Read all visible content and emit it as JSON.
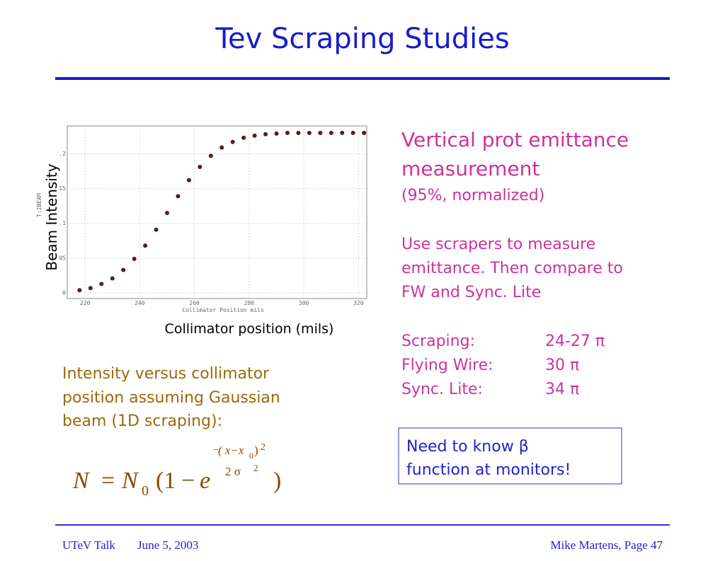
{
  "title": "Tev Scraping Studies",
  "chart_data": {
    "type": "scatter",
    "x": [
      218,
      222,
      226,
      230,
      234,
      238,
      242,
      246,
      250,
      254,
      258,
      262,
      266,
      270,
      274,
      278,
      282,
      286,
      290,
      294,
      298,
      302,
      306,
      310,
      314,
      318,
      322
    ],
    "values": [
      0.004,
      0.007,
      0.013,
      0.021,
      0.033,
      0.049,
      0.068,
      0.091,
      0.115,
      0.139,
      0.162,
      0.181,
      0.197,
      0.209,
      0.217,
      0.223,
      0.226,
      0.228,
      0.229,
      0.23,
      0.23,
      0.23,
      0.23,
      0.23,
      0.23,
      0.23,
      0.23
    ],
    "color": "#5a1a1a",
    "xlim": [
      213.5,
      323
    ],
    "xticks": [
      220,
      240,
      260,
      280,
      300,
      320
    ],
    "ylim": [
      -0.008,
      0.24
    ],
    "yticks": [
      0,
      {
        "value": 0.05,
        "label": "05"
      },
      {
        "value": 0.1,
        "label": ".1"
      },
      {
        "value": 0.15,
        "label": "15"
      },
      {
        "value": 0.2,
        "label": ".2"
      }
    ],
    "grid": true,
    "ylabel": "T:IBEAM",
    "xlabel": "Collimator  Position  mils",
    "ylabel_overlay": "Beam Intensity",
    "xlabel_overlay": "Collimator position (mils)"
  },
  "right_text": {
    "heading": [
      "Vertical prot emittance",
      "measurement"
    ],
    "subheading": "(95%, normalized)",
    "paragraph": [
      "Use scrapers to measure",
      "emittance. Then compare to",
      "FW and Sync. Lite"
    ],
    "measurements": [
      [
        "Scraping:",
        "24-27 π"
      ],
      [
        "Flying Wire:",
        "30 π"
      ],
      [
        "Sync. Lite:",
        "34 π"
      ]
    ]
  },
  "left_text": [
    "Intensity versus collimator",
    "position assuming Gaussian",
    "beam (1D scraping):"
  ],
  "formula": {
    "lhs": "N",
    "eq": "=",
    "n": "N",
    "sub": "0",
    "open": "(1",
    "minus": "−",
    "e": "e",
    "exp_sign": "−",
    "exp_num": "( x−x",
    "exp_num_sub": "0",
    "exp_num_close": ")",
    "exp_num_pow": "2",
    "exp_den": "2 σ",
    "exp_den_pow": "2",
    "close": ")"
  },
  "note": [
    "Need to know β",
    "function at monitors!"
  ],
  "footer": {
    "left": "UTeV Talk",
    "date": "June 5, 2003",
    "right": "Mike Martens, Page 47"
  }
}
